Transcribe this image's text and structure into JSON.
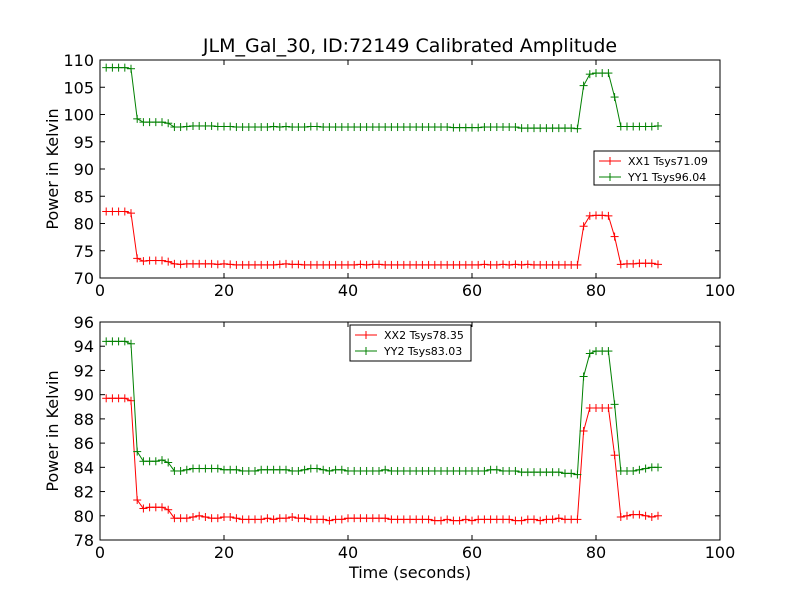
{
  "chart_data": [
    {
      "type": "line",
      "title": "JLM_Gal_30, ID:72149 Calibrated Amplitude",
      "xlabel": "",
      "ylabel": "Power in Kelvin",
      "xlim": [
        0,
        100
      ],
      "ylim": [
        70,
        110
      ],
      "xticks": [
        0,
        20,
        40,
        60,
        80,
        100
      ],
      "yticks": [
        70,
        75,
        80,
        85,
        90,
        95,
        100,
        105,
        110
      ],
      "grid": false,
      "legend_position": "right",
      "marker": "+",
      "x": [
        1,
        2,
        3,
        4,
        5,
        6,
        7,
        8,
        9,
        10,
        11,
        12,
        13,
        14,
        15,
        16,
        17,
        18,
        19,
        20,
        21,
        22,
        23,
        24,
        25,
        26,
        27,
        28,
        29,
        30,
        31,
        32,
        33,
        34,
        35,
        36,
        37,
        38,
        39,
        40,
        41,
        42,
        43,
        44,
        45,
        46,
        47,
        48,
        49,
        50,
        51,
        52,
        53,
        54,
        55,
        56,
        57,
        58,
        59,
        60,
        61,
        62,
        63,
        64,
        65,
        66,
        67,
        68,
        69,
        70,
        71,
        72,
        73,
        74,
        75,
        76,
        77,
        78,
        79,
        80,
        81,
        82,
        83,
        84,
        85,
        86,
        87,
        88,
        89,
        90
      ],
      "series": [
        {
          "name": "XX1 Tsys71.09",
          "color": "#ff0000",
          "values": [
            82.2,
            82.2,
            82.2,
            82.2,
            81.9,
            73.6,
            73.1,
            73.2,
            73.2,
            73.2,
            73.0,
            72.6,
            72.5,
            72.6,
            72.6,
            72.6,
            72.6,
            72.6,
            72.5,
            72.6,
            72.5,
            72.4,
            72.4,
            72.4,
            72.4,
            72.4,
            72.4,
            72.4,
            72.5,
            72.6,
            72.5,
            72.5,
            72.4,
            72.4,
            72.4,
            72.4,
            72.4,
            72.4,
            72.4,
            72.4,
            72.4,
            72.5,
            72.4,
            72.5,
            72.5,
            72.4,
            72.4,
            72.4,
            72.4,
            72.4,
            72.4,
            72.4,
            72.4,
            72.4,
            72.4,
            72.4,
            72.4,
            72.4,
            72.4,
            72.4,
            72.4,
            72.5,
            72.4,
            72.4,
            72.5,
            72.4,
            72.5,
            72.4,
            72.5,
            72.4,
            72.4,
            72.4,
            72.4,
            72.4,
            72.4,
            72.4,
            72.4,
            79.5,
            81.4,
            81.5,
            81.5,
            81.4,
            77.6,
            72.5,
            72.6,
            72.6,
            72.7,
            72.7,
            72.7,
            72.5
          ]
        },
        {
          "name": "YY1 Tsys96.04",
          "color": "#008000",
          "values": [
            108.6,
            108.6,
            108.6,
            108.6,
            108.4,
            99.2,
            98.6,
            98.6,
            98.6,
            98.6,
            98.4,
            97.7,
            97.7,
            97.8,
            97.9,
            97.9,
            97.9,
            97.9,
            97.8,
            97.8,
            97.8,
            97.7,
            97.7,
            97.7,
            97.7,
            97.7,
            97.7,
            97.8,
            97.7,
            97.8,
            97.7,
            97.7,
            97.7,
            97.8,
            97.8,
            97.7,
            97.7,
            97.7,
            97.7,
            97.7,
            97.7,
            97.7,
            97.7,
            97.7,
            97.7,
            97.7,
            97.7,
            97.7,
            97.7,
            97.7,
            97.7,
            97.7,
            97.7,
            97.7,
            97.7,
            97.7,
            97.6,
            97.6,
            97.6,
            97.6,
            97.6,
            97.7,
            97.7,
            97.7,
            97.7,
            97.7,
            97.7,
            97.5,
            97.5,
            97.5,
            97.5,
            97.5,
            97.5,
            97.5,
            97.5,
            97.5,
            97.4,
            105.3,
            107.4,
            107.6,
            107.6,
            107.6,
            103.2,
            97.8,
            97.8,
            97.8,
            97.8,
            97.8,
            97.8,
            97.9
          ]
        }
      ]
    },
    {
      "type": "line",
      "title": "",
      "xlabel": "Time (seconds)",
      "ylabel": "Power in Kelvin",
      "xlim": [
        0,
        100
      ],
      "ylim": [
        78,
        96
      ],
      "xticks": [
        0,
        20,
        40,
        60,
        80,
        100
      ],
      "yticks": [
        78,
        80,
        82,
        84,
        86,
        88,
        90,
        92,
        94,
        96
      ],
      "grid": false,
      "legend_position": "top-center",
      "marker": "+",
      "x": [
        1,
        2,
        3,
        4,
        5,
        6,
        7,
        8,
        9,
        10,
        11,
        12,
        13,
        14,
        15,
        16,
        17,
        18,
        19,
        20,
        21,
        22,
        23,
        24,
        25,
        26,
        27,
        28,
        29,
        30,
        31,
        32,
        33,
        34,
        35,
        36,
        37,
        38,
        39,
        40,
        41,
        42,
        43,
        44,
        45,
        46,
        47,
        48,
        49,
        50,
        51,
        52,
        53,
        54,
        55,
        56,
        57,
        58,
        59,
        60,
        61,
        62,
        63,
        64,
        65,
        66,
        67,
        68,
        69,
        70,
        71,
        72,
        73,
        74,
        75,
        76,
        77,
        78,
        79,
        80,
        81,
        82,
        83,
        84,
        85,
        86,
        87,
        88,
        89,
        90
      ],
      "series": [
        {
          "name": "XX2 Tsys78.35",
          "color": "#ff0000",
          "values": [
            89.7,
            89.7,
            89.7,
            89.7,
            89.5,
            81.3,
            80.6,
            80.7,
            80.7,
            80.7,
            80.5,
            79.8,
            79.8,
            79.8,
            79.9,
            80.0,
            79.9,
            79.8,
            79.8,
            79.9,
            79.9,
            79.8,
            79.7,
            79.7,
            79.7,
            79.7,
            79.8,
            79.7,
            79.8,
            79.8,
            79.9,
            79.8,
            79.8,
            79.7,
            79.7,
            79.7,
            79.6,
            79.7,
            79.7,
            79.8,
            79.8,
            79.8,
            79.8,
            79.8,
            79.8,
            79.8,
            79.7,
            79.7,
            79.7,
            79.7,
            79.7,
            79.7,
            79.7,
            79.6,
            79.6,
            79.7,
            79.6,
            79.6,
            79.7,
            79.6,
            79.7,
            79.7,
            79.7,
            79.7,
            79.7,
            79.7,
            79.6,
            79.6,
            79.7,
            79.7,
            79.6,
            79.7,
            79.7,
            79.8,
            79.7,
            79.7,
            79.7,
            87.0,
            88.9,
            88.9,
            88.9,
            88.9,
            85.0,
            79.9,
            80.0,
            80.1,
            80.1,
            80.0,
            79.9,
            80.0
          ]
        },
        {
          "name": "YY2 Tsys83.03",
          "color": "#008000",
          "values": [
            94.4,
            94.4,
            94.4,
            94.4,
            94.2,
            85.3,
            84.5,
            84.5,
            84.5,
            84.6,
            84.4,
            83.7,
            83.7,
            83.8,
            83.9,
            83.9,
            83.9,
            83.9,
            83.9,
            83.8,
            83.8,
            83.8,
            83.7,
            83.7,
            83.7,
            83.8,
            83.8,
            83.8,
            83.8,
            83.8,
            83.7,
            83.7,
            83.8,
            83.9,
            83.9,
            83.8,
            83.7,
            83.8,
            83.8,
            83.7,
            83.7,
            83.7,
            83.7,
            83.7,
            83.7,
            83.8,
            83.7,
            83.7,
            83.7,
            83.7,
            83.7,
            83.7,
            83.7,
            83.7,
            83.7,
            83.7,
            83.7,
            83.7,
            83.7,
            83.7,
            83.7,
            83.7,
            83.8,
            83.8,
            83.7,
            83.7,
            83.7,
            83.6,
            83.6,
            83.6,
            83.6,
            83.6,
            83.6,
            83.6,
            83.5,
            83.5,
            83.4,
            91.5,
            93.4,
            93.6,
            93.6,
            93.6,
            89.2,
            83.7,
            83.7,
            83.7,
            83.8,
            83.9,
            84.0,
            84.0
          ]
        }
      ]
    }
  ]
}
